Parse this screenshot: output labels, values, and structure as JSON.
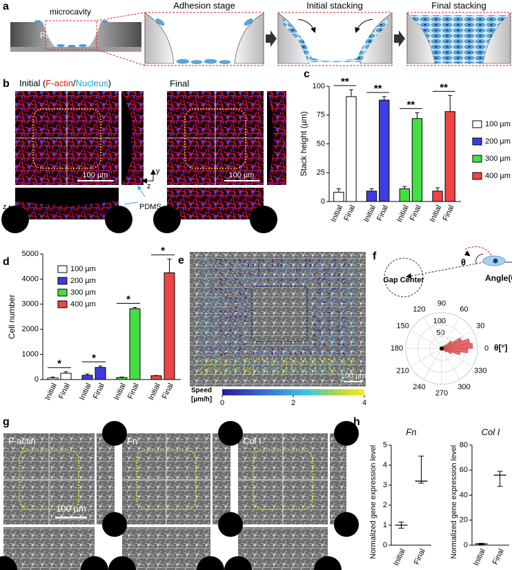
{
  "panel_labels": [
    "a",
    "b",
    "c",
    "d",
    "e",
    "f",
    "g",
    "h"
  ],
  "panel_a": {
    "pdms": "PDMS",
    "microcavity": "microcavity",
    "stages": [
      "Adhesion stage",
      "Initial stacking",
      "Final stacking"
    ]
  },
  "panel_b": {
    "title_initial": [
      "Initial (",
      "F-actin",
      "/",
      "Nucleus",
      ")"
    ],
    "title_final": "Final",
    "scale_bar": "100 µm",
    "axis_letters": {
      "x": "x",
      "y": "y",
      "z": "z"
    },
    "pdms": "PDMS"
  },
  "panel_e": {
    "scale_bar": "100 µm",
    "colorbar": {
      "label": [
        "Speed",
        "[µm/h]"
      ],
      "lim": [
        0,
        4
      ],
      "ticks": [
        0,
        2,
        4
      ]
    }
  },
  "panel_f": {
    "gap_center": "Gap Center",
    "angle": "Angle(θ)",
    "theta": "θ"
  },
  "panel_g": {
    "labels": [
      "F-actin",
      "Fn",
      "Col I"
    ],
    "scale_bar": "100 µm"
  },
  "chart_data": [
    {
      "type": "bar",
      "ylabel": "Stack height (µm)",
      "categories": [
        "Initial",
        "Final"
      ],
      "series": [
        {
          "name": "100 µm",
          "color": "#ffffff",
          "values": [
            8,
            91
          ],
          "errors": [
            3,
            6
          ]
        },
        {
          "name": "200 µm",
          "color": "#3d3de0",
          "values": [
            9,
            88
          ],
          "errors": [
            2,
            3
          ]
        },
        {
          "name": "300 µm",
          "color": "#44dd44",
          "values": [
            11,
            72
          ],
          "errors": [
            2,
            5
          ]
        },
        {
          "name": "400 µm",
          "color": "#ee4444",
          "values": [
            9,
            78
          ],
          "errors": [
            3,
            14
          ]
        }
      ],
      "significance": [
        "**",
        "**",
        "**",
        "**"
      ],
      "ylim": [
        0,
        100
      ],
      "yticks": [
        0,
        25,
        50,
        75,
        100
      ],
      "legend": "right"
    },
    {
      "type": "bar",
      "ylabel": "Cell number",
      "categories": [
        "Initial",
        "Final"
      ],
      "series": [
        {
          "name": "100 µm",
          "color": "#ffffff",
          "values": [
            60,
            250
          ],
          "errors": [
            40,
            60
          ]
        },
        {
          "name": "200 µm",
          "color": "#3d3de0",
          "values": [
            170,
            480
          ],
          "errors": [
            50,
            60
          ]
        },
        {
          "name": "300 µm",
          "color": "#44dd44",
          "values": [
            80,
            2820
          ],
          "errors": [
            20,
            50
          ]
        },
        {
          "name": "400 µm",
          "color": "#ee4444",
          "values": [
            150,
            4250
          ],
          "errors": [
            10,
            550
          ]
        }
      ],
      "significance": [
        "*",
        "*",
        "*",
        "*"
      ],
      "ylim": [
        0,
        5000
      ],
      "yticks": [
        0,
        1000,
        2000,
        3000,
        4000,
        5000
      ],
      "legend": "upper left"
    },
    {
      "type": "polar_histogram",
      "bins": [
        -50,
        -40,
        -30,
        -20,
        -10,
        0,
        10,
        20,
        30,
        40,
        50
      ],
      "values": [
        10,
        25,
        45,
        80,
        110,
        130,
        120,
        90,
        50,
        20
      ],
      "color": "#e8696b",
      "theta_ticks": [
        0,
        30,
        60,
        90,
        120,
        150,
        180,
        210,
        240,
        270,
        300,
        330
      ],
      "theta_label": "θ[°]",
      "rlim": [
        0,
        150
      ],
      "rticks": [
        50,
        100
      ]
    },
    {
      "type": "range",
      "title": "Fn",
      "ylabel": "Normalized gene expression level",
      "categories": [
        "Initial",
        "Final"
      ],
      "values": [
        1.0,
        3.2
      ],
      "lower": [
        0.85,
        3.1
      ],
      "upper": [
        1.15,
        4.45
      ],
      "ylim": [
        0,
        5
      ],
      "yticks": [
        0,
        1,
        2,
        3,
        4,
        5
      ]
    },
    {
      "type": "range",
      "title": "Col I",
      "ylabel": "Normalized gene expression level",
      "categories": [
        "Initial",
        "Final"
      ],
      "values": [
        1,
        56
      ],
      "lower": [
        0.5,
        47
      ],
      "upper": [
        1.5,
        59
      ],
      "ylim": [
        0,
        80
      ],
      "yticks": [
        0,
        20,
        40,
        60,
        80
      ]
    }
  ]
}
